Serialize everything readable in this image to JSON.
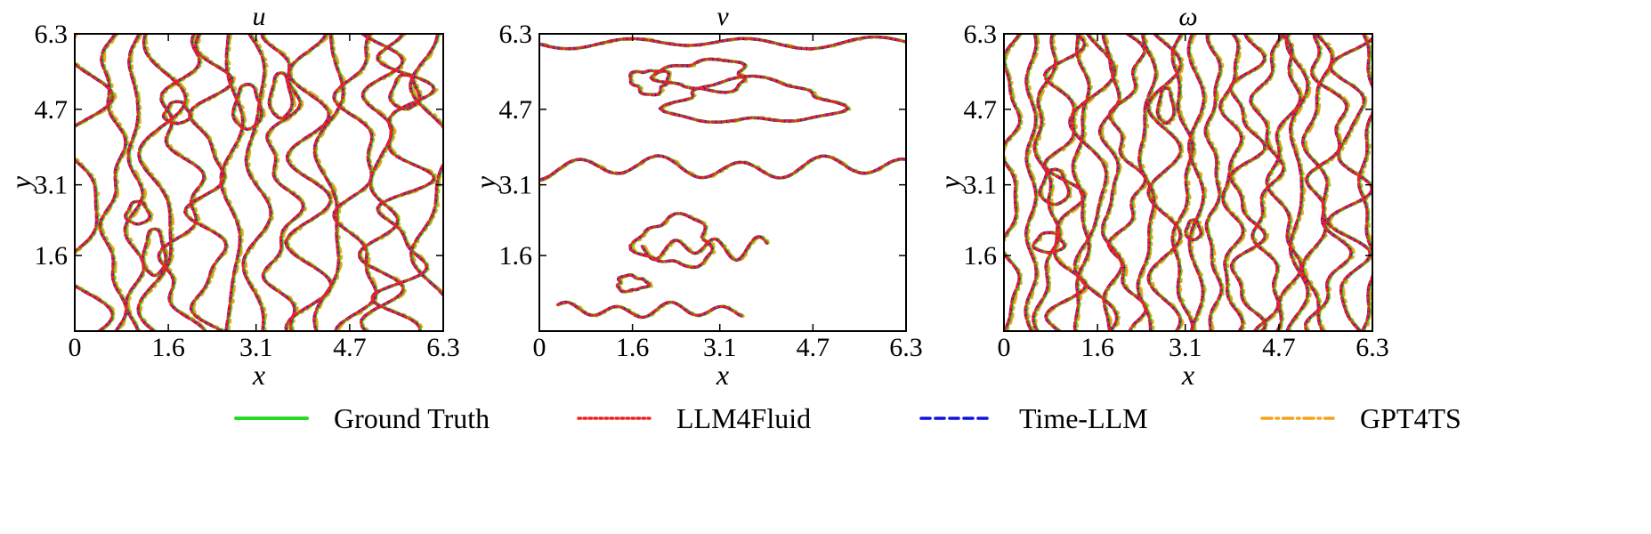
{
  "chart_data": [
    {
      "type": "line",
      "title": "u",
      "xlabel": "x",
      "ylabel": "y",
      "xlim": [
        0,
        6.3
      ],
      "ylim": [
        0,
        6.3
      ],
      "xticks": [
        "0",
        "1.6",
        "3.1",
        "4.7",
        "6.3"
      ],
      "yticks": [
        "1.6",
        "3.1",
        "4.7",
        "6.3"
      ],
      "grid": false,
      "pattern": "vertical-stripes",
      "series": [
        {
          "name": "Ground Truth",
          "color": "#22dd22",
          "style": "solid"
        },
        {
          "name": "LLM4Fluid",
          "color": "#ee2222",
          "style": "dotted"
        },
        {
          "name": "Time-LLM",
          "color": "#1111dd",
          "style": "dashed"
        },
        {
          "name": "GPT4TS",
          "color": "#f7a21b",
          "style": "dash-dot"
        }
      ]
    },
    {
      "type": "line",
      "title": "v",
      "xlabel": "x",
      "ylabel": "y",
      "xlim": [
        0,
        6.3
      ],
      "ylim": [
        0,
        6.3
      ],
      "xticks": [
        "0",
        "1.6",
        "3.1",
        "4.7",
        "6.3"
      ],
      "yticks": [
        "1.6",
        "3.1",
        "4.7",
        "6.3"
      ],
      "grid": false,
      "pattern": "horizontal-fronts",
      "series": [
        {
          "name": "Ground Truth",
          "color": "#22dd22",
          "style": "solid"
        },
        {
          "name": "LLM4Fluid",
          "color": "#ee2222",
          "style": "dotted"
        },
        {
          "name": "Time-LLM",
          "color": "#1111dd",
          "style": "dashed"
        },
        {
          "name": "GPT4TS",
          "color": "#f7a21b",
          "style": "dash-dot"
        }
      ]
    },
    {
      "type": "line",
      "title": "ω",
      "xlabel": "x",
      "ylabel": "y",
      "xlim": [
        0,
        6.3
      ],
      "ylim": [
        0,
        6.3
      ],
      "xticks": [
        "0",
        "1.6",
        "3.1",
        "4.7",
        "6.3"
      ],
      "yticks": [
        "1.6",
        "3.1",
        "4.7",
        "6.3"
      ],
      "grid": false,
      "pattern": "dense-vertical-stripes",
      "series": [
        {
          "name": "Ground Truth",
          "color": "#22dd22",
          "style": "solid"
        },
        {
          "name": "LLM4Fluid",
          "color": "#ee2222",
          "style": "dotted"
        },
        {
          "name": "Time-LLM",
          "color": "#1111dd",
          "style": "dashed"
        },
        {
          "name": "GPT4TS",
          "color": "#f7a21b",
          "style": "dash-dot"
        }
      ]
    }
  ],
  "legend": {
    "position": "bottom",
    "items": [
      {
        "label": "Ground Truth",
        "color": "#22dd22",
        "style": "solid"
      },
      {
        "label": "LLM4Fluid",
        "color": "#ee2222",
        "style": "dotted"
      },
      {
        "label": "Time-LLM",
        "color": "#1111dd",
        "style": "dashed"
      },
      {
        "label": "GPT4TS",
        "color": "#f7a21b",
        "style": "dash-dot"
      }
    ]
  }
}
